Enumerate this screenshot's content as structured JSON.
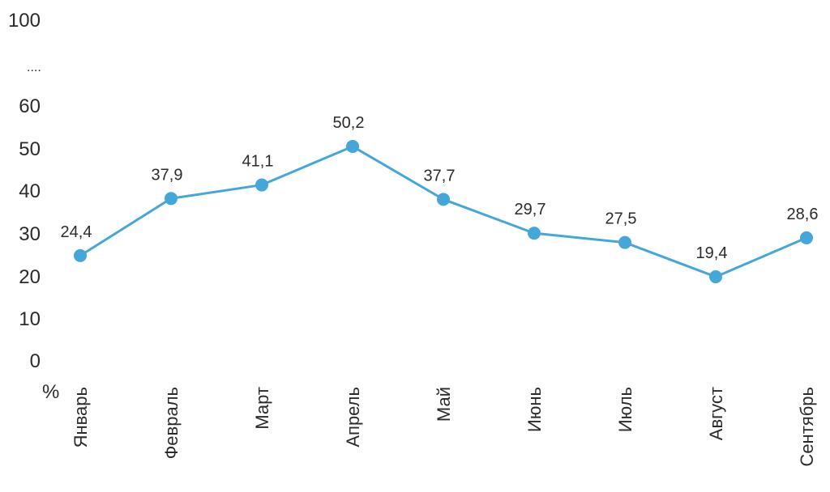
{
  "chart_data": {
    "type": "line",
    "categories": [
      "Январь",
      "Февраль",
      "Март",
      "Апрель",
      "Май",
      "Июнь",
      "Июль",
      "Август",
      "Сентябрь"
    ],
    "series": [
      {
        "values": [
          24.4,
          37.9,
          41.1,
          50.2,
          37.7,
          29.7,
          27.5,
          19.4,
          28.6
        ]
      }
    ],
    "data_labels": [
      "24,4",
      "37,9",
      "41,1",
      "50,2",
      "37,7",
      "29,7",
      "27,5",
      "19,4",
      "28,6"
    ],
    "y_tick_labels": [
      "0",
      "10",
      "20",
      "30",
      "40",
      "50",
      "60",
      "....",
      "100"
    ],
    "y_axis_break": "....",
    "y_unit": "%",
    "ylim": [
      0,
      100
    ],
    "grid": false,
    "legend": "none",
    "color": "#45a6da"
  }
}
